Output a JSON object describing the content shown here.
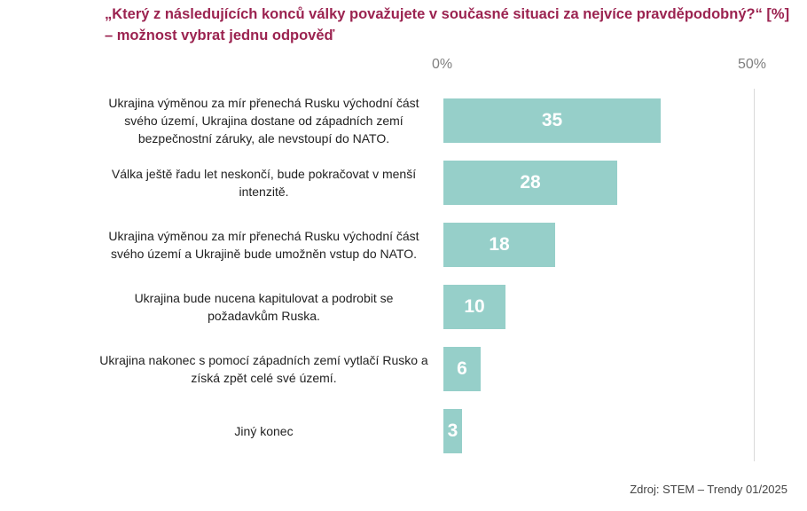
{
  "chart_data": {
    "type": "bar",
    "title": "„Který z následujících konců války považujete v současné situaci za nejvíce pravděpodobný?“ [%]",
    "subtitle": "– možnost vybrat jednu odpověď",
    "categories": [
      "Ukrajina výměnou za mír přenechá Rusku východní část svého území, Ukrajina dostane od západních zemí bezpečnostní záruky, ale nevstoupí do NATO.",
      "Válka ještě řadu let neskončí, bude pokračovat v menší intenzitě.",
      "Ukrajina výměnou za mír přenechá Rusku východní část svého území a Ukrajině bude umožněn vstup do NATO.",
      "Ukrajina bude nucena kapitulovat a podrobit se požadavkům Ruska.",
      "Ukrajina nakonec s pomocí západních zemí vytlačí Rusko a získá zpět celé své území.",
      "Jiný konec"
    ],
    "values": [
      35,
      28,
      18,
      10,
      6,
      3
    ],
    "value_labels": [
      "35",
      "28",
      "18",
      "10",
      "6",
      "3"
    ],
    "xlim": [
      0,
      50
    ],
    "tick_labels": [
      "0%",
      "50%"
    ],
    "bar_color": "#96cfc9",
    "title_color": "#9b2350",
    "source": "Zdroj: STEM – Trendy 01/2025"
  }
}
